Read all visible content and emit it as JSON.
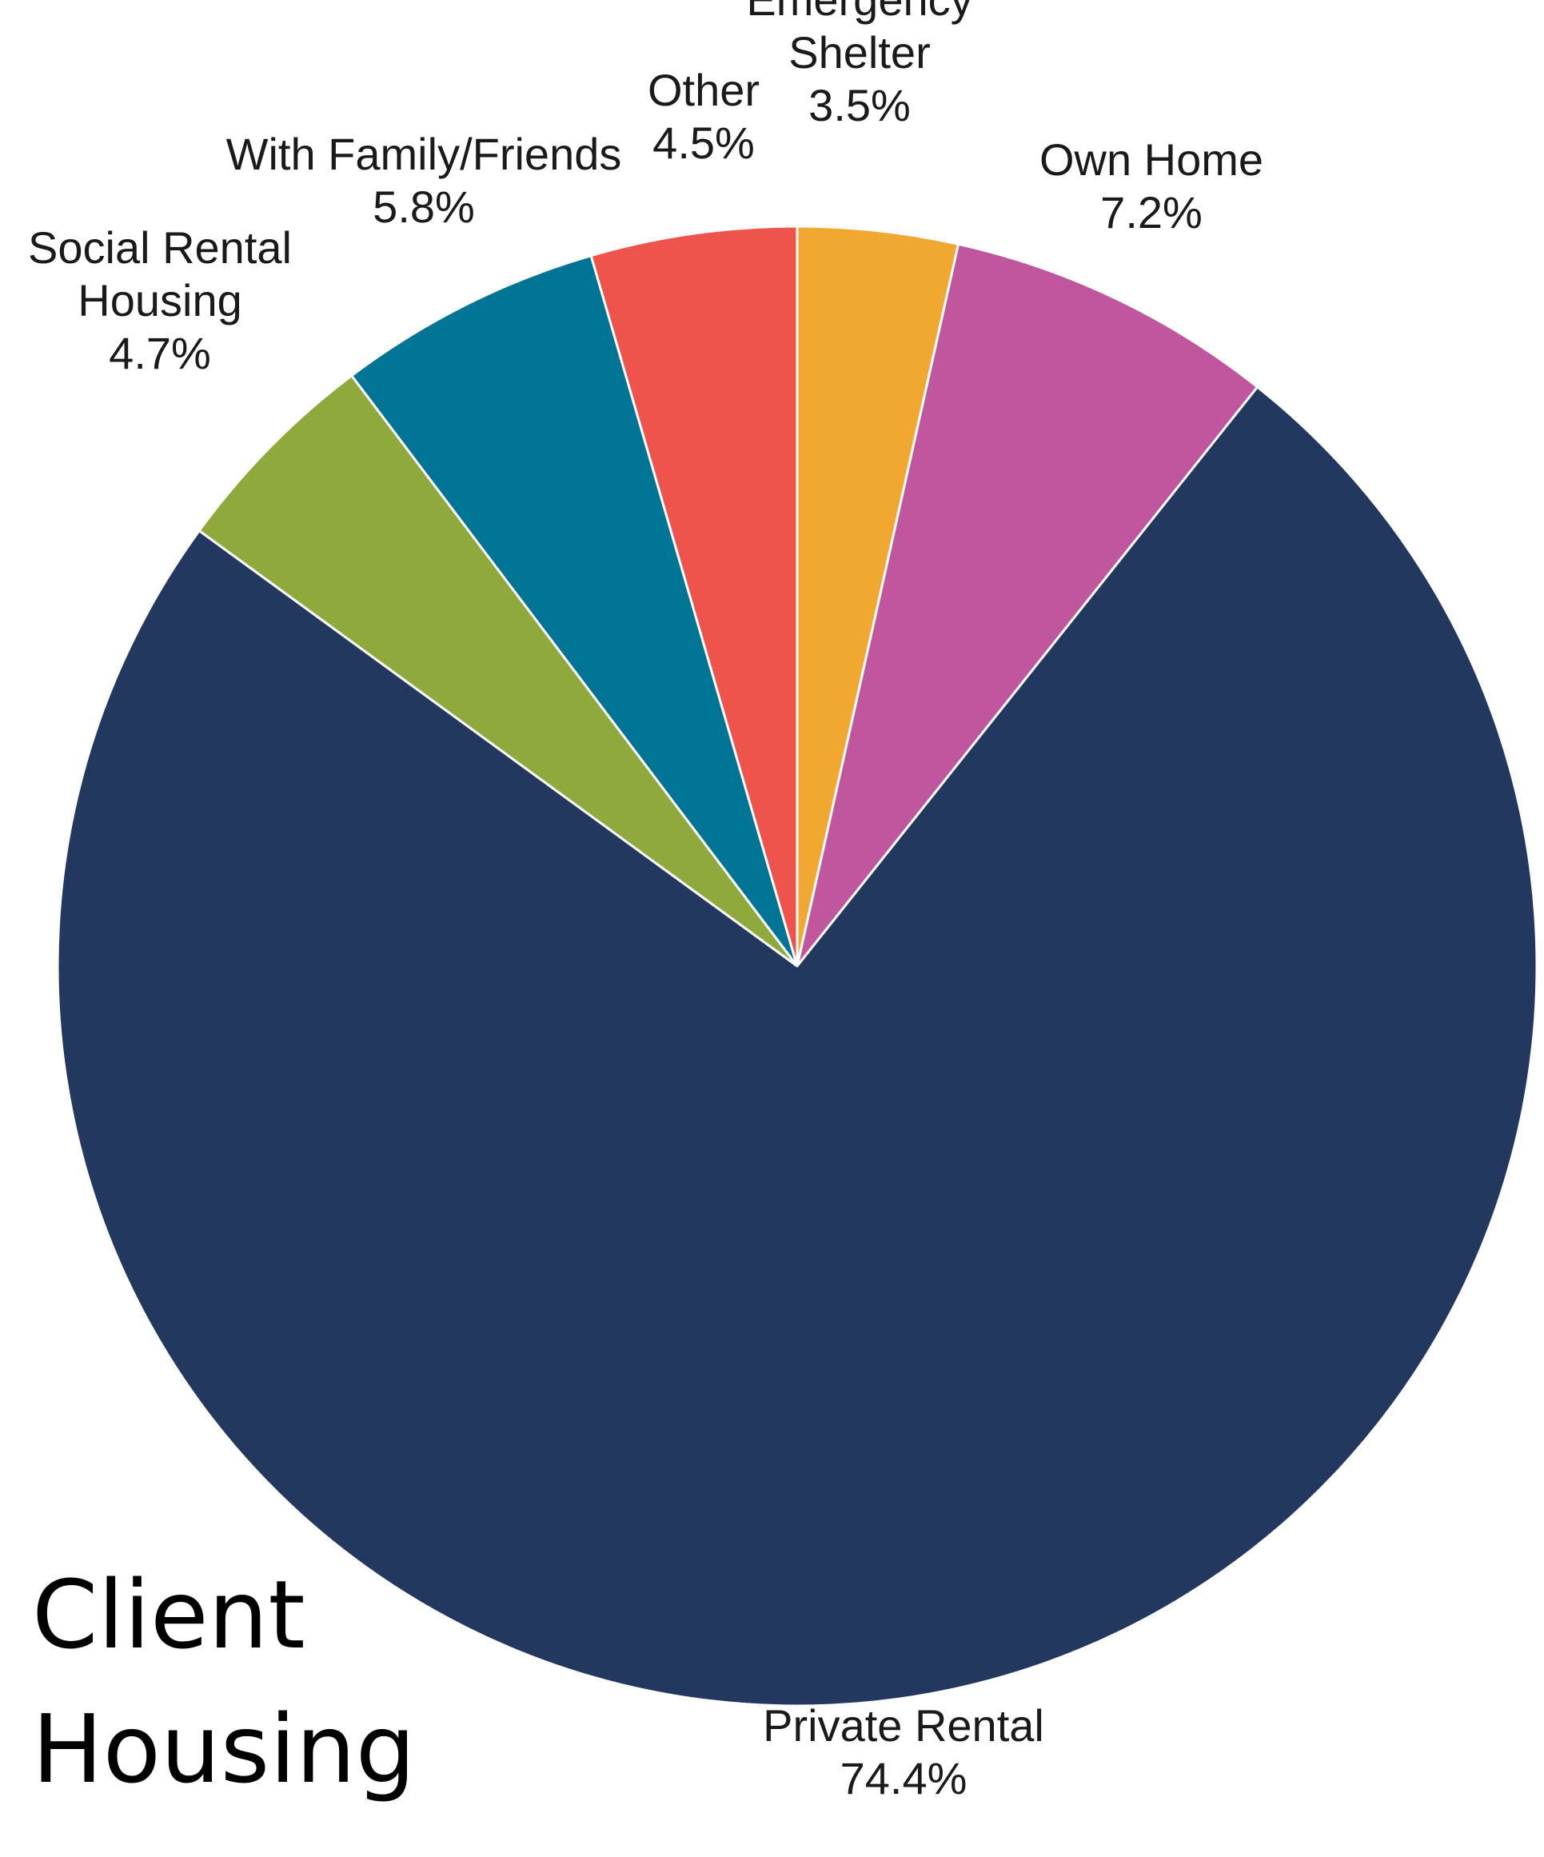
{
  "chart_data": {
    "type": "pie",
    "title": [
      "Client",
      "Housing"
    ],
    "start": "top",
    "direction": "clockwise",
    "slices": [
      {
        "label": [
          "Emergency",
          "Shelter"
        ],
        "value": 3.5,
        "display": "3.5%",
        "color": "#f0a830"
      },
      {
        "label": [
          "Own Home"
        ],
        "value": 7.2,
        "display": "7.2%",
        "color": "#c0569e"
      },
      {
        "label": [
          "Private Rental"
        ],
        "value": 74.4,
        "display": "74.4%",
        "color": "#22385e"
      },
      {
        "label": [
          "Social Rental",
          "Housing"
        ],
        "value": 4.7,
        "display": "4.7%",
        "color": "#8fa93c"
      },
      {
        "label": [
          "With Family/Friends"
        ],
        "value": 5.8,
        "display": "5.8%",
        "color": "#007494"
      },
      {
        "label": [
          "Other"
        ],
        "value": 4.5,
        "display": "4.5%",
        "color": "#ef544c"
      }
    ]
  }
}
